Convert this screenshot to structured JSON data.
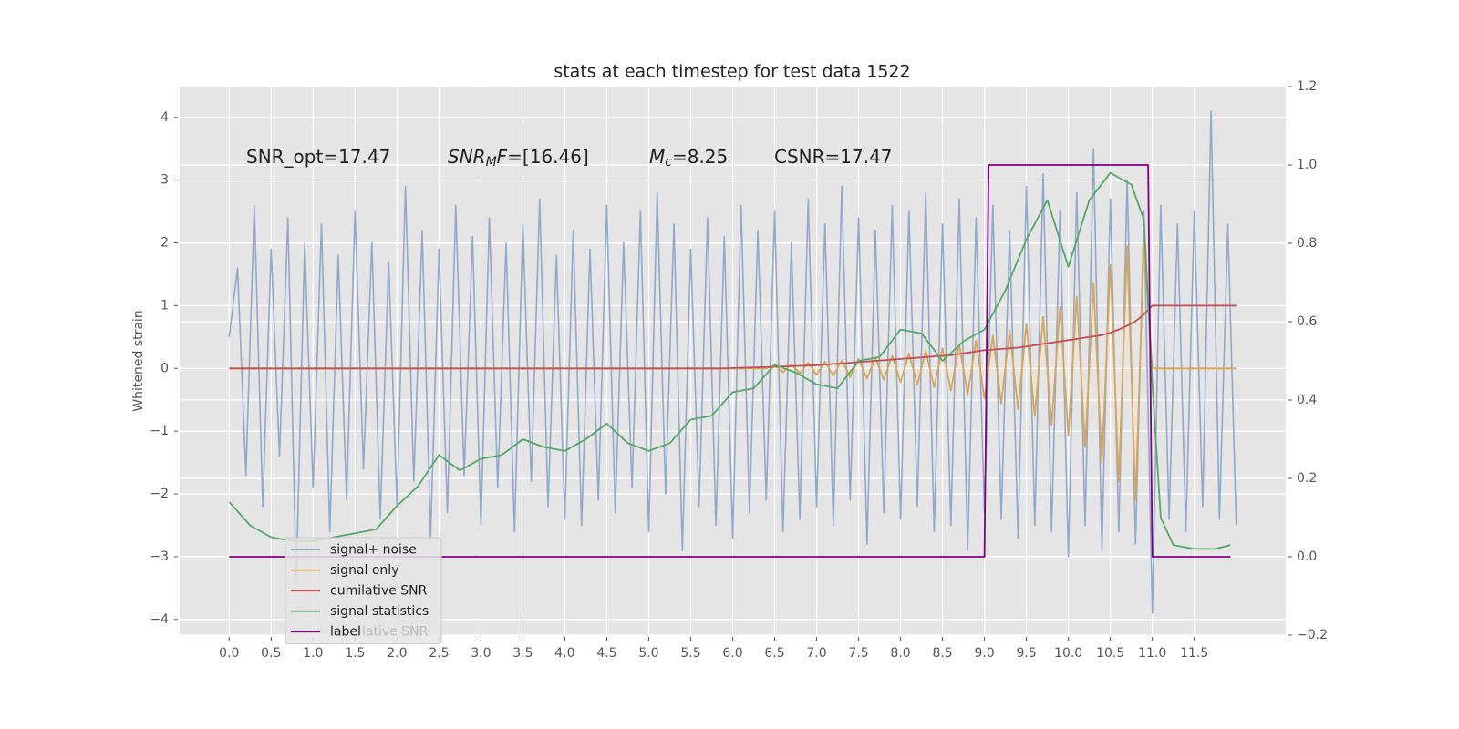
{
  "chart_data": {
    "type": "line",
    "title": "stats at each timestep for test data 1522",
    "ylabel": "Whitened strain",
    "annotations": [
      [
        {
          "text": "SNR_opt=17.47",
          "style": "normal"
        }
      ],
      [
        {
          "text": "SNR",
          "style": "italic"
        },
        {
          "text": "M",
          "style": "sub"
        },
        {
          "text": "F",
          "style": "italic"
        },
        {
          "text": "=[16.46]",
          "style": "normal"
        }
      ],
      [
        {
          "text": "M",
          "style": "italic"
        },
        {
          "text": "c",
          "style": "sub"
        },
        {
          "text": "=8.25",
          "style": "normal"
        }
      ],
      [
        {
          "text": "CSNR=17.47",
          "style": "normal"
        }
      ]
    ],
    "legend_ghost_text": "lative SNR",
    "legend": "lower left",
    "grid": true,
    "xlim": [
      -0.59,
      12.59
    ],
    "xticks": [
      {
        "value": 0,
        "label": "0.0"
      },
      {
        "value": 0.5,
        "label": "0.5"
      },
      {
        "value": 1,
        "label": "1.0"
      },
      {
        "value": 1.5,
        "label": "1.5"
      },
      {
        "value": 2,
        "label": "2.0"
      },
      {
        "value": 2.5,
        "label": "2.5"
      },
      {
        "value": 3,
        "label": "3.0"
      },
      {
        "value": 3.5,
        "label": "3.5"
      },
      {
        "value": 4,
        "label": "4.0"
      },
      {
        "value": 4.5,
        "label": "4.5"
      },
      {
        "value": 5,
        "label": "5.0"
      },
      {
        "value": 5.5,
        "label": "5.5"
      },
      {
        "value": 6,
        "label": "6.0"
      },
      {
        "value": 6.5,
        "label": "6.5"
      },
      {
        "value": 7,
        "label": "7.0"
      },
      {
        "value": 7.5,
        "label": "7.5"
      },
      {
        "value": 8,
        "label": "8.0"
      },
      {
        "value": 8.5,
        "label": "8.5"
      },
      {
        "value": 9,
        "label": "9.0"
      },
      {
        "value": 9.5,
        "label": "9.5"
      },
      {
        "value": 10,
        "label": "10.0"
      },
      {
        "value": 10.5,
        "label": "10.5"
      },
      {
        "value": 11,
        "label": "11.0"
      },
      {
        "value": 11.5,
        "label": "11.5"
      }
    ],
    "ylim": [
      -4.25,
      4.49
    ],
    "yticks": [
      {
        "value": -4,
        "label": "−4"
      },
      {
        "value": -3,
        "label": "−3"
      },
      {
        "value": -2,
        "label": "−2"
      },
      {
        "value": -1,
        "label": "−1"
      },
      0,
      1,
      2,
      3,
      4
    ],
    "y2lim": [
      -0.2,
      1.2
    ],
    "y2ticks": [
      {
        "value": -0.2,
        "label": "−0.2"
      },
      {
        "value": 0,
        "label": "0.0"
      },
      {
        "value": 0.2,
        "label": "0.2"
      },
      {
        "value": 0.4,
        "label": "0.4"
      },
      {
        "value": 0.6,
        "label": "0.6"
      },
      {
        "value": 0.8,
        "label": "0.8"
      },
      {
        "value": 1,
        "label": "1.0"
      },
      {
        "value": 1.2,
        "label": "1.2"
      }
    ],
    "x": [
      0,
      0.1,
      0.2,
      0.3,
      0.4,
      0.5,
      0.6,
      0.7,
      0.8,
      0.9,
      1,
      1.1,
      1.2,
      1.3,
      1.4,
      1.5,
      1.6,
      1.7,
      1.8,
      1.9,
      2,
      2.1,
      2.2,
      2.3,
      2.4,
      2.5,
      2.6,
      2.7,
      2.8,
      2.9,
      3,
      3.1,
      3.2,
      3.3,
      3.4,
      3.5,
      3.6,
      3.7,
      3.8,
      3.9,
      4,
      4.1,
      4.2,
      4.3,
      4.4,
      4.5,
      4.6,
      4.7,
      4.8,
      4.9,
      5,
      5.1,
      5.2,
      5.3,
      5.4,
      5.5,
      5.6,
      5.7,
      5.8,
      5.9,
      6,
      6.1,
      6.2,
      6.3,
      6.4,
      6.5,
      6.6,
      6.7,
      6.8,
      6.9,
      7,
      7.1,
      7.2,
      7.3,
      7.4,
      7.5,
      7.6,
      7.7,
      7.8,
      7.9,
      8,
      8.1,
      8.2,
      8.3,
      8.4,
      8.5,
      8.6,
      8.7,
      8.8,
      8.9,
      9,
      9.1,
      9.2,
      9.3,
      9.4,
      9.5,
      9.6,
      9.7,
      9.8,
      9.9,
      10,
      10.1,
      10.2,
      10.3,
      10.4,
      10.5,
      10.6,
      10.7,
      10.8,
      10.9,
      11,
      11.1,
      11.2,
      11.3,
      11.4,
      11.5,
      11.6,
      11.7,
      11.8,
      11.9,
      12
    ],
    "series": [
      {
        "name": "signal+ noise",
        "color": "#93a8cb",
        "values": [
          0.5,
          1.6,
          -1.7,
          2.6,
          -2.2,
          1.9,
          -1.4,
          2.4,
          -3.4,
          2.0,
          -1.9,
          2.3,
          -2.6,
          1.8,
          -2.1,
          2.5,
          -1.6,
          2.0,
          -2.4,
          1.7,
          -2.2,
          2.9,
          -1.8,
          2.2,
          -2.7,
          1.9,
          -2.3,
          2.6,
          -1.7,
          2.1,
          -2.5,
          2.4,
          -1.9,
          2.0,
          -2.6,
          2.3,
          -1.8,
          2.7,
          -2.2,
          1.8,
          -2.4,
          2.2,
          -2.5,
          1.9,
          -2.1,
          2.6,
          -2.3,
          2.0,
          -1.9,
          2.5,
          -2.6,
          2.8,
          -2.0,
          2.3,
          -2.9,
          1.9,
          -2.2,
          2.4,
          -2.5,
          2.1,
          -2.7,
          2.6,
          -2.3,
          2.2,
          -2.1,
          2.5,
          -2.6,
          2.0,
          -2.4,
          2.7,
          -2.2,
          2.3,
          -2.5,
          2.9,
          -2.1,
          2.4,
          -2.8,
          2.2,
          -2.3,
          2.6,
          -2.4,
          2.5,
          -2.2,
          2.8,
          -2.6,
          2.3,
          -2.5,
          2.7,
          -2.9,
          2.4,
          -2.3,
          2.6,
          -2.4,
          2.2,
          -2.7,
          2.9,
          -2.5,
          3.1,
          -2.6,
          2.5,
          -3.0,
          2.8,
          -2.5,
          3.5,
          -2.9,
          2.7,
          -2.6,
          3.0,
          -2.8,
          2.5,
          -3.9,
          2.6,
          -2.4,
          2.3,
          -2.6,
          2.5,
          -2.2,
          4.1,
          -2.4,
          2.3,
          -2.5
        ]
      },
      {
        "name": "signal only",
        "color": "#dca64f",
        "values": [
          0,
          0,
          0,
          0,
          0,
          0,
          0,
          0,
          0,
          0,
          0,
          0,
          0,
          0,
          0,
          0,
          0,
          0,
          0,
          0,
          0,
          0,
          0,
          0,
          0,
          0,
          0,
          0,
          0,
          0,
          0,
          0,
          0,
          0,
          0,
          0,
          0,
          0,
          0,
          0,
          0,
          0,
          0,
          0,
          0,
          0,
          0,
          0,
          0,
          0,
          0,
          0,
          0,
          0,
          0,
          0,
          0,
          0,
          0,
          0,
          0,
          0,
          0,
          0,
          0,
          0.05,
          -0.06,
          0.07,
          -0.08,
          0.09,
          -0.1,
          0.11,
          -0.12,
          0.13,
          -0.14,
          0.15,
          -0.16,
          0.17,
          -0.18,
          0.2,
          -0.22,
          0.24,
          -0.26,
          0.28,
          -0.3,
          0.32,
          -0.35,
          0.38,
          -0.41,
          0.44,
          -0.48,
          0.52,
          -0.56,
          0.6,
          -0.65,
          0.7,
          -0.76,
          0.82,
          -0.9,
          0.98,
          -1.06,
          1.15,
          -1.25,
          1.35,
          -1.5,
          1.65,
          -1.8,
          1.95,
          -2.1,
          2.0,
          0,
          0,
          0,
          0,
          0,
          0,
          0,
          0,
          0,
          0,
          0
        ]
      },
      {
        "name": "cumilative SNR",
        "color": "#c44e52",
        "values": [
          0,
          0,
          0,
          0,
          0,
          0,
          0,
          0,
          0,
          0,
          0,
          0,
          0,
          0,
          0,
          0,
          0,
          0,
          0,
          0,
          0,
          0,
          0,
          0,
          0,
          0,
          0,
          0,
          0,
          0,
          0,
          0,
          0,
          0,
          0,
          0,
          0,
          0,
          0,
          0,
          0,
          0,
          0,
          0,
          0,
          0,
          0,
          0,
          0,
          0,
          0,
          0,
          0,
          0,
          0,
          0,
          0,
          0,
          0,
          0,
          0.005,
          0.01,
          0.012,
          0.015,
          0.02,
          0.025,
          0.03,
          0.035,
          0.04,
          0.045,
          0.05,
          0.06,
          0.07,
          0.08,
          0.09,
          0.1,
          0.11,
          0.12,
          0.13,
          0.14,
          0.15,
          0.16,
          0.17,
          0.18,
          0.19,
          0.2,
          0.21,
          0.23,
          0.25,
          0.27,
          0.29,
          0.3,
          0.31,
          0.32,
          0.33,
          0.35,
          0.37,
          0.39,
          0.41,
          0.43,
          0.45,
          0.47,
          0.49,
          0.51,
          0.53,
          0.57,
          0.62,
          0.68,
          0.75,
          0.86,
          1,
          1,
          1,
          1,
          1,
          1,
          1,
          1,
          1,
          1,
          1
        ]
      },
      {
        "name": "signal statistics",
        "color": "#55a868",
        "axis": "y2",
        "x": [
          0,
          0.25,
          0.5,
          0.75,
          1,
          1.25,
          1.5,
          1.75,
          2,
          2.25,
          2.5,
          2.75,
          3,
          3.25,
          3.5,
          3.75,
          4,
          4.25,
          4.5,
          4.75,
          5,
          5.25,
          5.5,
          5.75,
          6,
          6.25,
          6.5,
          6.75,
          7,
          7.25,
          7.5,
          7.75,
          8,
          8.25,
          8.5,
          8.75,
          9,
          9.25,
          9.5,
          9.75,
          10,
          10.25,
          10.5,
          10.75,
          10.9,
          11,
          11.1,
          11.25,
          11.5,
          11.75,
          11.93
        ],
        "values": [
          0.14,
          0.08,
          0.05,
          0.04,
          0.04,
          0.05,
          0.06,
          0.07,
          0.13,
          0.18,
          0.26,
          0.22,
          0.25,
          0.26,
          0.3,
          0.28,
          0.27,
          0.3,
          0.34,
          0.29,
          0.27,
          0.29,
          0.35,
          0.36,
          0.42,
          0.43,
          0.49,
          0.47,
          0.44,
          0.43,
          0.5,
          0.51,
          0.58,
          0.57,
          0.5,
          0.55,
          0.58,
          0.68,
          0.81,
          0.91,
          0.74,
          0.91,
          0.98,
          0.95,
          0.86,
          0.44,
          0.1,
          0.03,
          0.02,
          0.02,
          0.03
        ]
      },
      {
        "name": "label",
        "color": "#800080",
        "axis": "y2",
        "x": [
          0,
          9.0,
          9.05,
          10.95,
          11.0,
          11.93
        ],
        "values": [
          0,
          0,
          1,
          1,
          0,
          0
        ]
      }
    ]
  }
}
